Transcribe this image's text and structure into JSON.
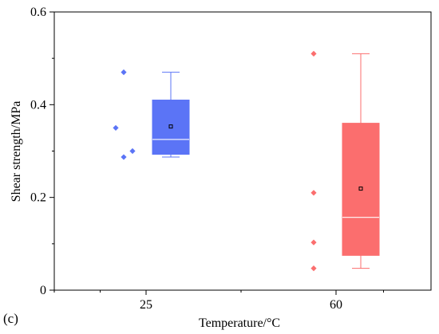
{
  "chart_data": {
    "type": "box",
    "xlabel": "Temperature/°C",
    "ylabel": "Shear strength/MPa",
    "ylim": [
      0,
      0.6
    ],
    "yticks": [
      "0",
      "0.2",
      "0.4",
      "0.6"
    ],
    "categories": [
      "25",
      "60"
    ],
    "grid": false,
    "series": [
      {
        "category": "25",
        "color": "#5b74f6",
        "points": [
          0.35,
          0.47,
          0.287,
          0.3
        ],
        "whisker_low": 0.287,
        "q1": 0.293,
        "median": 0.325,
        "q3": 0.41,
        "whisker_high": 0.47,
        "mean": 0.353
      },
      {
        "category": "60",
        "color": "#fb6e6e",
        "points": [
          0.51,
          0.21,
          0.103,
          0.047
        ],
        "whisker_low": 0.047,
        "q1": 0.075,
        "median": 0.157,
        "q3": 0.36,
        "whisker_high": 0.51,
        "mean": 0.219
      }
    ]
  },
  "panel_label": "(c)"
}
